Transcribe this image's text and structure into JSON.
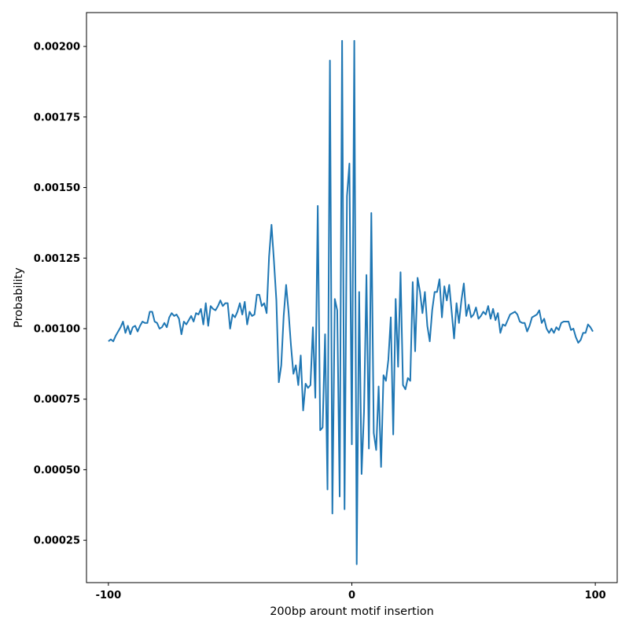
{
  "chart_data": {
    "type": "line",
    "title": "",
    "xlabel": "200bp arount motif insertion",
    "ylabel": "Probability",
    "xlim": [
      -109,
      109
    ],
    "ylim": [
      0.0001,
      0.00212
    ],
    "grid": false,
    "xticks": [
      -100,
      0,
      100
    ],
    "xtick_labels": [
      "-100",
      "0",
      "100"
    ],
    "yticks": [
      0.00025,
      0.0005,
      0.00075,
      0.001,
      0.00125,
      0.0015,
      0.00175,
      0.002
    ],
    "ytick_labels": [
      "0.00025",
      "0.00050",
      "0.00075",
      "0.00100",
      "0.00125",
      "0.00150",
      "0.00175",
      "0.00200"
    ],
    "series_color": "#1f77b4",
    "series": [
      {
        "x": [
          -100,
          -99,
          -98,
          -97,
          -96,
          -95,
          -94,
          -93,
          -92,
          -91,
          -90,
          -89,
          -88,
          -87,
          -86,
          -85,
          -84,
          -83,
          -82,
          -81,
          -80,
          -79,
          -78,
          -77,
          -76,
          -75,
          -74,
          -73,
          -72,
          -71,
          -70,
          -69,
          -68,
          -67,
          -66,
          -65,
          -64,
          -63,
          -62,
          -61,
          -60,
          -59,
          -58,
          -57,
          -56,
          -55,
          -54,
          -53,
          -52,
          -51,
          -50,
          -49,
          -48,
          -47,
          -46,
          -45,
          -44,
          -43,
          -42,
          -41,
          -40,
          -39,
          -38,
          -37,
          -36,
          -35,
          -34,
          -33,
          -32,
          -31,
          -30,
          -29,
          -28,
          -27,
          -26,
          -25,
          -24,
          -23,
          -22,
          -21,
          -20,
          -19,
          -18,
          -17,
          -16,
          -15,
          -14,
          -13,
          -12,
          -11,
          -10,
          -9,
          -8,
          -7,
          -6,
          -5,
          -4,
          -3,
          -2,
          -1,
          0,
          1,
          2,
          3,
          4,
          5,
          6,
          7,
          8,
          9,
          10,
          11,
          12,
          13,
          14,
          15,
          16,
          17,
          18,
          19,
          20,
          21,
          22,
          23,
          24,
          25,
          26,
          27,
          28,
          29,
          30,
          31,
          32,
          33,
          34,
          35,
          36,
          37,
          38,
          39,
          40,
          41,
          42,
          43,
          44,
          45,
          46,
          47,
          48,
          49,
          50,
          51,
          52,
          53,
          54,
          55,
          56,
          57,
          58,
          59,
          60,
          61,
          62,
          63,
          64,
          65,
          66,
          67,
          68,
          69,
          70,
          71,
          72,
          73,
          74,
          75,
          76,
          77,
          78,
          79,
          80,
          81,
          82,
          83,
          84,
          85,
          86,
          87,
          88,
          89,
          90,
          91,
          92,
          93,
          94,
          95,
          96,
          97,
          98,
          99
        ],
        "values": [
          0.000955,
          0.000962,
          0.000955,
          0.000975,
          0.00099,
          0.001005,
          0.001025,
          0.000985,
          0.00101,
          0.00098,
          0.001005,
          0.00101,
          0.00099,
          0.00101,
          0.001025,
          0.00102,
          0.00102,
          0.00106,
          0.00106,
          0.001025,
          0.00102,
          0.001,
          0.001005,
          0.00102,
          0.001005,
          0.00104,
          0.001055,
          0.001045,
          0.00105,
          0.001035,
          0.00098,
          0.001025,
          0.001015,
          0.00103,
          0.001045,
          0.001025,
          0.001055,
          0.00105,
          0.00107,
          0.001015,
          0.00109,
          0.00101,
          0.00108,
          0.00107,
          0.001065,
          0.00108,
          0.0011,
          0.00108,
          0.00109,
          0.00109,
          0.001,
          0.00105,
          0.00104,
          0.00106,
          0.00109,
          0.00105,
          0.001095,
          0.001015,
          0.00106,
          0.001045,
          0.00105,
          0.00112,
          0.00112,
          0.00108,
          0.00109,
          0.001055,
          0.001255,
          0.001368,
          0.00124,
          0.0011,
          0.00081,
          0.00087,
          0.001045,
          0.001155,
          0.00106,
          0.00094,
          0.00084,
          0.00087,
          0.0008,
          0.000905,
          0.00071,
          0.000805,
          0.00079,
          0.0008,
          0.001005,
          0.000755,
          0.001435,
          0.00064,
          0.00065,
          0.00098,
          0.00043,
          0.00195,
          0.000345,
          0.001105,
          0.001065,
          0.000405,
          0.00202,
          0.00036,
          0.00147,
          0.001585,
          0.00059,
          0.00202,
          0.000165,
          0.00113,
          0.000485,
          0.000705,
          0.00119,
          0.000575,
          0.00141,
          0.00063,
          0.00057,
          0.000795,
          0.00051,
          0.000835,
          0.000815,
          0.00089,
          0.00104,
          0.000625,
          0.001105,
          0.000865,
          0.0012,
          0.0008,
          0.000785,
          0.000825,
          0.000815,
          0.001165,
          0.00092,
          0.00118,
          0.00113,
          0.001055,
          0.00113,
          0.00101,
          0.000955,
          0.001065,
          0.00113,
          0.00113,
          0.001175,
          0.00104,
          0.00115,
          0.0011,
          0.001155,
          0.00106,
          0.000965,
          0.00109,
          0.00102,
          0.0011,
          0.00116,
          0.001045,
          0.001085,
          0.00104,
          0.00105,
          0.001075,
          0.001035,
          0.001045,
          0.00106,
          0.00105,
          0.00108,
          0.001035,
          0.00107,
          0.00103,
          0.001055,
          0.000985,
          0.001015,
          0.00101,
          0.00103,
          0.00105,
          0.001055,
          0.00106,
          0.00105,
          0.001025,
          0.00102,
          0.00102,
          0.00099,
          0.00101,
          0.00104,
          0.001045,
          0.00105,
          0.001065,
          0.00102,
          0.001035,
          0.001,
          0.000985,
          0.001,
          0.000985,
          0.001005,
          0.000995,
          0.00102,
          0.001025,
          0.001025,
          0.001025,
          0.000995,
          0.001,
          0.00097,
          0.00095,
          0.00096,
          0.000985,
          0.000985,
          0.001015,
          0.001005,
          0.00099
        ]
      }
    ]
  }
}
